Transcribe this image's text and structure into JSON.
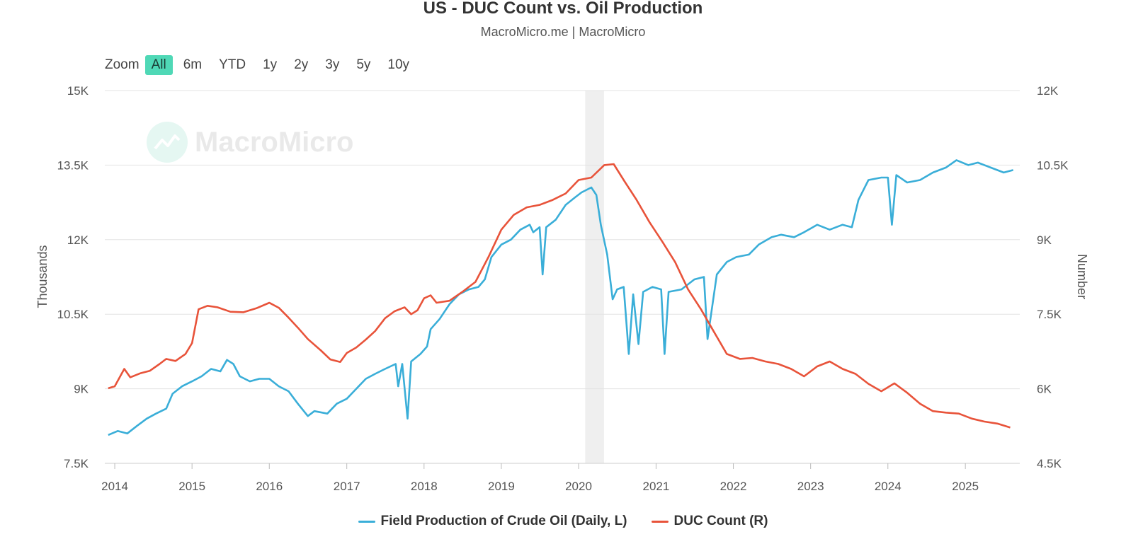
{
  "header": {
    "title": "US - DUC Count vs. Oil Production",
    "subtitle": "MacroMicro.me | MacroMicro"
  },
  "zoom": {
    "label": "Zoom",
    "buttons": [
      "All",
      "6m",
      "YTD",
      "1y",
      "2y",
      "3y",
      "5y",
      "10y"
    ],
    "active": "All"
  },
  "watermark": {
    "text": "MacroMicro",
    "icon": "macromicro-logo-icon"
  },
  "chart_data": {
    "type": "line",
    "title": "US - DUC Count vs. Oil Production",
    "subtitle": "MacroMicro.me | MacroMicro",
    "x_axis": {
      "type": "date",
      "range": [
        "2013-11-15",
        "2025-09-15"
      ],
      "tick_labels": [
        "2014",
        "2015",
        "2016",
        "2017",
        "2018",
        "2019",
        "2020",
        "2021",
        "2022",
        "2023",
        "2024",
        "2025"
      ]
    },
    "y_left": {
      "label": "Thousands",
      "range": [
        7500,
        15000
      ],
      "tick_values": [
        7500,
        9000,
        10500,
        12000,
        13500,
        15000
      ],
      "tick_labels": [
        "7.5K",
        "9K",
        "10.5K",
        "12K",
        "13.5K",
        "15K"
      ]
    },
    "y_right": {
      "label": "Number",
      "range": [
        4500,
        12000
      ],
      "tick_values": [
        4500,
        6000,
        7500,
        9000,
        10500,
        12000
      ],
      "tick_labels": [
        "4.5K",
        "6K",
        "7.5K",
        "9K",
        "10.5K",
        "12K"
      ]
    },
    "grid": true,
    "legend_position": "bottom-center",
    "recession_band": {
      "from": "2020-02-01",
      "to": "2020-04-30",
      "color": "#efefef"
    },
    "series": [
      {
        "name": "Field Production of Crude Oil (Daily, L)",
        "axis": "left",
        "color": "#3aaed8",
        "points": [
          [
            "2013-12-01",
            8070
          ],
          [
            "2014-01-15",
            8150
          ],
          [
            "2014-03-01",
            8100
          ],
          [
            "2014-04-15",
            8250
          ],
          [
            "2014-06-01",
            8400
          ],
          [
            "2014-07-15",
            8500
          ],
          [
            "2014-09-01",
            8600
          ],
          [
            "2014-10-01",
            8900
          ],
          [
            "2014-11-15",
            9050
          ],
          [
            "2015-01-01",
            9150
          ],
          [
            "2015-02-15",
            9250
          ],
          [
            "2015-04-01",
            9400
          ],
          [
            "2015-05-15",
            9350
          ],
          [
            "2015-06-15",
            9580
          ],
          [
            "2015-07-15",
            9500
          ],
          [
            "2015-08-15",
            9250
          ],
          [
            "2015-10-01",
            9150
          ],
          [
            "2015-11-15",
            9200
          ],
          [
            "2016-01-01",
            9200
          ],
          [
            "2016-02-15",
            9050
          ],
          [
            "2016-04-01",
            8950
          ],
          [
            "2016-05-15",
            8700
          ],
          [
            "2016-07-01",
            8450
          ],
          [
            "2016-08-01",
            8550
          ],
          [
            "2016-10-01",
            8500
          ],
          [
            "2016-11-15",
            8700
          ],
          [
            "2017-01-01",
            8800
          ],
          [
            "2017-02-15",
            9000
          ],
          [
            "2017-04-01",
            9200
          ],
          [
            "2017-05-15",
            9300
          ],
          [
            "2017-07-01",
            9400
          ],
          [
            "2017-08-20",
            9500
          ],
          [
            "2017-09-01",
            9050
          ],
          [
            "2017-09-20",
            9500
          ],
          [
            "2017-10-15",
            8400
          ],
          [
            "2017-11-01",
            9550
          ],
          [
            "2017-12-15",
            9700
          ],
          [
            "2018-01-15",
            9850
          ],
          [
            "2018-02-01",
            10200
          ],
          [
            "2018-03-15",
            10400
          ],
          [
            "2018-05-01",
            10700
          ],
          [
            "2018-06-15",
            10900
          ],
          [
            "2018-08-01",
            11000
          ],
          [
            "2018-09-15",
            11050
          ],
          [
            "2018-10-15",
            11200
          ],
          [
            "2018-11-15",
            11650
          ],
          [
            "2019-01-01",
            11900
          ],
          [
            "2019-02-15",
            12000
          ],
          [
            "2019-04-01",
            12200
          ],
          [
            "2019-05-15",
            12300
          ],
          [
            "2019-06-01",
            12150
          ],
          [
            "2019-07-01",
            12250
          ],
          [
            "2019-07-15",
            11300
          ],
          [
            "2019-08-01",
            12250
          ],
          [
            "2019-09-15",
            12400
          ],
          [
            "2019-11-01",
            12700
          ],
          [
            "2019-12-15",
            12850
          ],
          [
            "2020-01-15",
            12950
          ],
          [
            "2020-03-01",
            13050
          ],
          [
            "2020-03-25",
            12900
          ],
          [
            "2020-04-15",
            12300
          ],
          [
            "2020-05-15",
            11700
          ],
          [
            "2020-06-10",
            10800
          ],
          [
            "2020-07-01",
            11000
          ],
          [
            "2020-08-01",
            11050
          ],
          [
            "2020-08-25",
            9700
          ],
          [
            "2020-09-15",
            10900
          ],
          [
            "2020-10-10",
            9900
          ],
          [
            "2020-11-01",
            10950
          ],
          [
            "2020-12-15",
            11050
          ],
          [
            "2021-01-25",
            11000
          ],
          [
            "2021-02-10",
            9700
          ],
          [
            "2021-03-01",
            10950
          ],
          [
            "2021-05-01",
            11000
          ],
          [
            "2021-07-01",
            11200
          ],
          [
            "2021-08-15",
            11250
          ],
          [
            "2021-09-01",
            10000
          ],
          [
            "2021-10-15",
            11300
          ],
          [
            "2021-12-01",
            11550
          ],
          [
            "2022-01-15",
            11650
          ],
          [
            "2022-03-15",
            11700
          ],
          [
            "2022-05-01",
            11900
          ],
          [
            "2022-07-01",
            12050
          ],
          [
            "2022-08-15",
            12100
          ],
          [
            "2022-10-15",
            12050
          ],
          [
            "2022-12-01",
            12150
          ],
          [
            "2023-02-01",
            12300
          ],
          [
            "2023-04-01",
            12200
          ],
          [
            "2023-06-01",
            12300
          ],
          [
            "2023-07-15",
            12250
          ],
          [
            "2023-08-15",
            12800
          ],
          [
            "2023-10-01",
            13200
          ],
          [
            "2023-12-01",
            13250
          ],
          [
            "2024-01-01",
            13250
          ],
          [
            "2024-01-20",
            12300
          ],
          [
            "2024-02-10",
            13300
          ],
          [
            "2024-04-01",
            13150
          ],
          [
            "2024-06-01",
            13200
          ],
          [
            "2024-08-01",
            13350
          ],
          [
            "2024-10-01",
            13450
          ],
          [
            "2024-11-20",
            13600
          ],
          [
            "2025-01-15",
            13500
          ],
          [
            "2025-03-01",
            13550
          ],
          [
            "2025-05-01",
            13450
          ],
          [
            "2025-07-01",
            13350
          ],
          [
            "2025-08-15",
            13400
          ]
        ]
      },
      {
        "name": "DUC Count (R)",
        "axis": "right",
        "color": "#e8533a",
        "points": [
          [
            "2013-12-01",
            6010
          ],
          [
            "2014-01-01",
            6050
          ],
          [
            "2014-02-15",
            6400
          ],
          [
            "2014-03-15",
            6230
          ],
          [
            "2014-05-01",
            6310
          ],
          [
            "2014-06-15",
            6360
          ],
          [
            "2014-08-01",
            6500
          ],
          [
            "2014-09-01",
            6600
          ],
          [
            "2014-10-15",
            6560
          ],
          [
            "2014-12-01",
            6700
          ],
          [
            "2015-01-01",
            6920
          ],
          [
            "2015-02-01",
            7600
          ],
          [
            "2015-03-15",
            7670
          ],
          [
            "2015-05-01",
            7640
          ],
          [
            "2015-07-01",
            7550
          ],
          [
            "2015-09-01",
            7540
          ],
          [
            "2015-11-01",
            7620
          ],
          [
            "2016-01-01",
            7730
          ],
          [
            "2016-02-15",
            7630
          ],
          [
            "2016-04-01",
            7430
          ],
          [
            "2016-05-15",
            7230
          ],
          [
            "2016-07-01",
            7000
          ],
          [
            "2016-09-01",
            6770
          ],
          [
            "2016-10-15",
            6590
          ],
          [
            "2016-12-01",
            6540
          ],
          [
            "2017-01-01",
            6720
          ],
          [
            "2017-02-15",
            6830
          ],
          [
            "2017-04-01",
            6990
          ],
          [
            "2017-05-15",
            7160
          ],
          [
            "2017-07-01",
            7420
          ],
          [
            "2017-08-15",
            7560
          ],
          [
            "2017-10-01",
            7640
          ],
          [
            "2017-11-01",
            7500
          ],
          [
            "2017-12-01",
            7580
          ],
          [
            "2018-01-01",
            7820
          ],
          [
            "2018-02-01",
            7880
          ],
          [
            "2018-03-01",
            7730
          ],
          [
            "2018-05-01",
            7770
          ],
          [
            "2018-07-01",
            7950
          ],
          [
            "2018-09-01",
            8150
          ],
          [
            "2018-11-01",
            8650
          ],
          [
            "2019-01-01",
            9200
          ],
          [
            "2019-03-01",
            9500
          ],
          [
            "2019-05-01",
            9650
          ],
          [
            "2019-07-01",
            9700
          ],
          [
            "2019-09-01",
            9800
          ],
          [
            "2019-11-01",
            9930
          ],
          [
            "2020-01-01",
            10200
          ],
          [
            "2020-03-01",
            10250
          ],
          [
            "2020-05-01",
            10500
          ],
          [
            "2020-06-15",
            10520
          ],
          [
            "2020-08-01",
            10200
          ],
          [
            "2020-10-01",
            9800
          ],
          [
            "2020-12-01",
            9350
          ],
          [
            "2021-02-01",
            8950
          ],
          [
            "2021-04-01",
            8550
          ],
          [
            "2021-06-01",
            8000
          ],
          [
            "2021-08-01",
            7600
          ],
          [
            "2021-10-01",
            7150
          ],
          [
            "2021-12-01",
            6700
          ],
          [
            "2022-02-01",
            6600
          ],
          [
            "2022-04-01",
            6620
          ],
          [
            "2022-06-01",
            6550
          ],
          [
            "2022-08-01",
            6500
          ],
          [
            "2022-10-01",
            6400
          ],
          [
            "2022-12-01",
            6250
          ],
          [
            "2023-02-01",
            6450
          ],
          [
            "2023-04-01",
            6550
          ],
          [
            "2023-06-01",
            6400
          ],
          [
            "2023-08-01",
            6300
          ],
          [
            "2023-10-01",
            6100
          ],
          [
            "2023-12-01",
            5950
          ],
          [
            "2024-02-01",
            6110
          ],
          [
            "2024-04-01",
            5920
          ],
          [
            "2024-06-01",
            5700
          ],
          [
            "2024-08-01",
            5550
          ],
          [
            "2024-10-01",
            5520
          ],
          [
            "2024-12-01",
            5500
          ],
          [
            "2025-02-01",
            5400
          ],
          [
            "2025-04-01",
            5340
          ],
          [
            "2025-06-01",
            5300
          ],
          [
            "2025-08-01",
            5220
          ]
        ]
      }
    ]
  }
}
